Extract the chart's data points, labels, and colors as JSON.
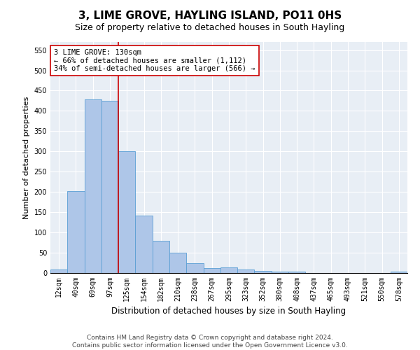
{
  "title": "3, LIME GROVE, HAYLING ISLAND, PO11 0HS",
  "subtitle": "Size of property relative to detached houses in South Hayling",
  "xlabel": "Distribution of detached houses by size in South Hayling",
  "ylabel": "Number of detached properties",
  "categories": [
    "12sqm",
    "40sqm",
    "69sqm",
    "97sqm",
    "125sqm",
    "154sqm",
    "182sqm",
    "210sqm",
    "238sqm",
    "267sqm",
    "295sqm",
    "323sqm",
    "352sqm",
    "380sqm",
    "408sqm",
    "437sqm",
    "465sqm",
    "493sqm",
    "521sqm",
    "550sqm",
    "578sqm"
  ],
  "values": [
    8,
    202,
    428,
    425,
    300,
    142,
    80,
    50,
    25,
    12,
    13,
    9,
    6,
    4,
    3,
    0,
    0,
    0,
    0,
    0,
    3
  ],
  "bar_color": "#aec6e8",
  "bar_edge_color": "#5a9fd4",
  "annotation_text": "3 LIME GROVE: 130sqm\n← 66% of detached houses are smaller (1,112)\n34% of semi-detached houses are larger (566) →",
  "annotation_box_color": "#ffffff",
  "annotation_box_edge_color": "#cc0000",
  "red_line_index": 3.5,
  "ylim": [
    0,
    570
  ],
  "yticks": [
    0,
    50,
    100,
    150,
    200,
    250,
    300,
    350,
    400,
    450,
    500,
    550
  ],
  "background_color": "#e8eef5",
  "footer_line1": "Contains HM Land Registry data © Crown copyright and database right 2024.",
  "footer_line2": "Contains public sector information licensed under the Open Government Licence v3.0.",
  "title_fontsize": 11,
  "subtitle_fontsize": 9,
  "xlabel_fontsize": 8.5,
  "ylabel_fontsize": 8,
  "tick_fontsize": 7,
  "annotation_fontsize": 7.5,
  "footer_fontsize": 6.5
}
